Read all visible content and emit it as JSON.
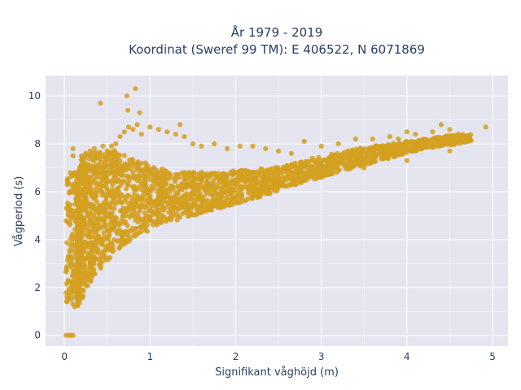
{
  "chart_data": {
    "type": "scatter",
    "title_lines": [
      "År 1979 - 2019",
      "Koordinat (Sweref 99 TM): E 406522, N 6071869"
    ],
    "xlabel": "Signifikant våghöjd (m)",
    "ylabel": "Vågperiod (s)",
    "xlim": [
      -0.22,
      5.18
    ],
    "ylim": [
      -0.45,
      10.85
    ],
    "xticks": [
      0,
      1,
      2,
      3,
      4,
      5
    ],
    "yticks": [
      0,
      2,
      4,
      6,
      8,
      10
    ],
    "grid": true,
    "legend": "none",
    "marker_color": "#D4A020",
    "plot_background": "#E5E5EF",
    "points": [
      [
        0.02,
        0.0
      ],
      [
        0.05,
        0.0
      ],
      [
        0.08,
        0.0
      ],
      [
        0.1,
        0.0
      ],
      [
        0.03,
        1.6
      ],
      [
        0.05,
        1.8
      ],
      [
        0.08,
        1.5
      ],
      [
        0.1,
        1.3
      ],
      [
        0.12,
        1.2
      ],
      [
        0.15,
        1.3
      ],
      [
        0.06,
        3.5
      ],
      [
        0.08,
        5.0
      ],
      [
        0.1,
        6.0
      ],
      [
        0.12,
        6.8
      ],
      [
        0.1,
        7.5
      ],
      [
        0.1,
        7.8
      ],
      [
        0.2,
        7.5
      ],
      [
        0.25,
        7.6
      ],
      [
        0.3,
        7.7
      ],
      [
        0.35,
        7.8
      ],
      [
        0.4,
        7.6
      ],
      [
        0.45,
        7.9
      ],
      [
        0.5,
        7.7
      ],
      [
        0.55,
        7.9
      ],
      [
        0.6,
        8.0
      ],
      [
        0.65,
        8.3
      ],
      [
        0.7,
        8.5
      ],
      [
        0.75,
        8.7
      ],
      [
        0.8,
        8.6
      ],
      [
        0.85,
        8.8
      ],
      [
        0.9,
        8.4
      ],
      [
        1.0,
        8.7
      ],
      [
        1.1,
        8.6
      ],
      [
        1.2,
        8.5
      ],
      [
        1.3,
        8.4
      ],
      [
        1.35,
        8.8
      ],
      [
        1.4,
        8.3
      ],
      [
        1.5,
        8.0
      ],
      [
        1.6,
        7.9
      ],
      [
        1.75,
        8.0
      ],
      [
        1.9,
        7.8
      ],
      [
        2.05,
        7.9
      ],
      [
        2.2,
        7.9
      ],
      [
        2.35,
        7.8
      ],
      [
        2.5,
        7.7
      ],
      [
        2.65,
        7.6
      ],
      [
        2.8,
        8.1
      ],
      [
        3.0,
        7.9
      ],
      [
        3.2,
        8.0
      ],
      [
        3.4,
        8.2
      ],
      [
        3.6,
        8.2
      ],
      [
        3.8,
        8.3
      ],
      [
        3.9,
        8.2
      ],
      [
        4.0,
        8.5
      ],
      [
        4.1,
        8.4
      ],
      [
        4.2,
        8.2
      ],
      [
        4.3,
        8.5
      ],
      [
        4.4,
        8.8
      ],
      [
        4.5,
        8.6
      ],
      [
        4.6,
        8.4
      ],
      [
        4.7,
        8.3
      ],
      [
        4.92,
        8.7
      ],
      [
        0.42,
        9.7
      ],
      [
        0.73,
        10.0
      ],
      [
        0.74,
        9.4
      ],
      [
        0.83,
        10.3
      ],
      [
        0.88,
        9.3
      ],
      [
        0.8,
        6.8
      ],
      [
        1.5,
        6.0
      ],
      [
        2.0,
        5.8
      ],
      [
        2.5,
        6.2
      ],
      [
        3.0,
        6.6
      ],
      [
        3.5,
        7.0
      ],
      [
        4.0,
        7.3
      ],
      [
        4.5,
        7.7
      ]
    ],
    "distribution_bands": [
      {
        "x": [
          0.15,
          0.2,
          0.3,
          0.4,
          0.5,
          0.6,
          0.7,
          0.8,
          0.9,
          1.0,
          1.1,
          1.2,
          1.3,
          1.4,
          1.5,
          1.6,
          1.7,
          1.8,
          1.9,
          2.0,
          2.2,
          2.4,
          2.6,
          2.8,
          3.0,
          3.2,
          3.4,
          3.6,
          3.8,
          4.0,
          4.2,
          4.4,
          4.6,
          4.75
        ]
      },
      {
        "y_low": [
          1.2,
          1.5,
          2.2,
          2.7,
          3.1,
          3.5,
          3.8,
          4.0,
          4.2,
          4.4,
          4.6,
          4.7,
          4.8,
          4.9,
          5.0,
          5.1,
          5.2,
          5.3,
          5.4,
          5.5,
          5.7,
          5.9,
          6.2,
          6.4,
          6.6,
          6.8,
          7.0,
          7.2,
          7.4,
          7.6,
          7.8,
          7.9,
          8.0,
          8.1
        ]
      },
      {
        "y_high": [
          6.6,
          7.5,
          7.6,
          7.7,
          7.6,
          7.8,
          7.6,
          7.4,
          7.3,
          7.1,
          7.0,
          6.9,
          6.8,
          6.8,
          6.8,
          6.8,
          6.8,
          6.8,
          6.8,
          6.9,
          6.9,
          7.0,
          7.1,
          7.3,
          7.5,
          7.6,
          7.8,
          7.9,
          8.0,
          8.1,
          8.2,
          8.3,
          8.4,
          8.4
        ]
      }
    ]
  }
}
